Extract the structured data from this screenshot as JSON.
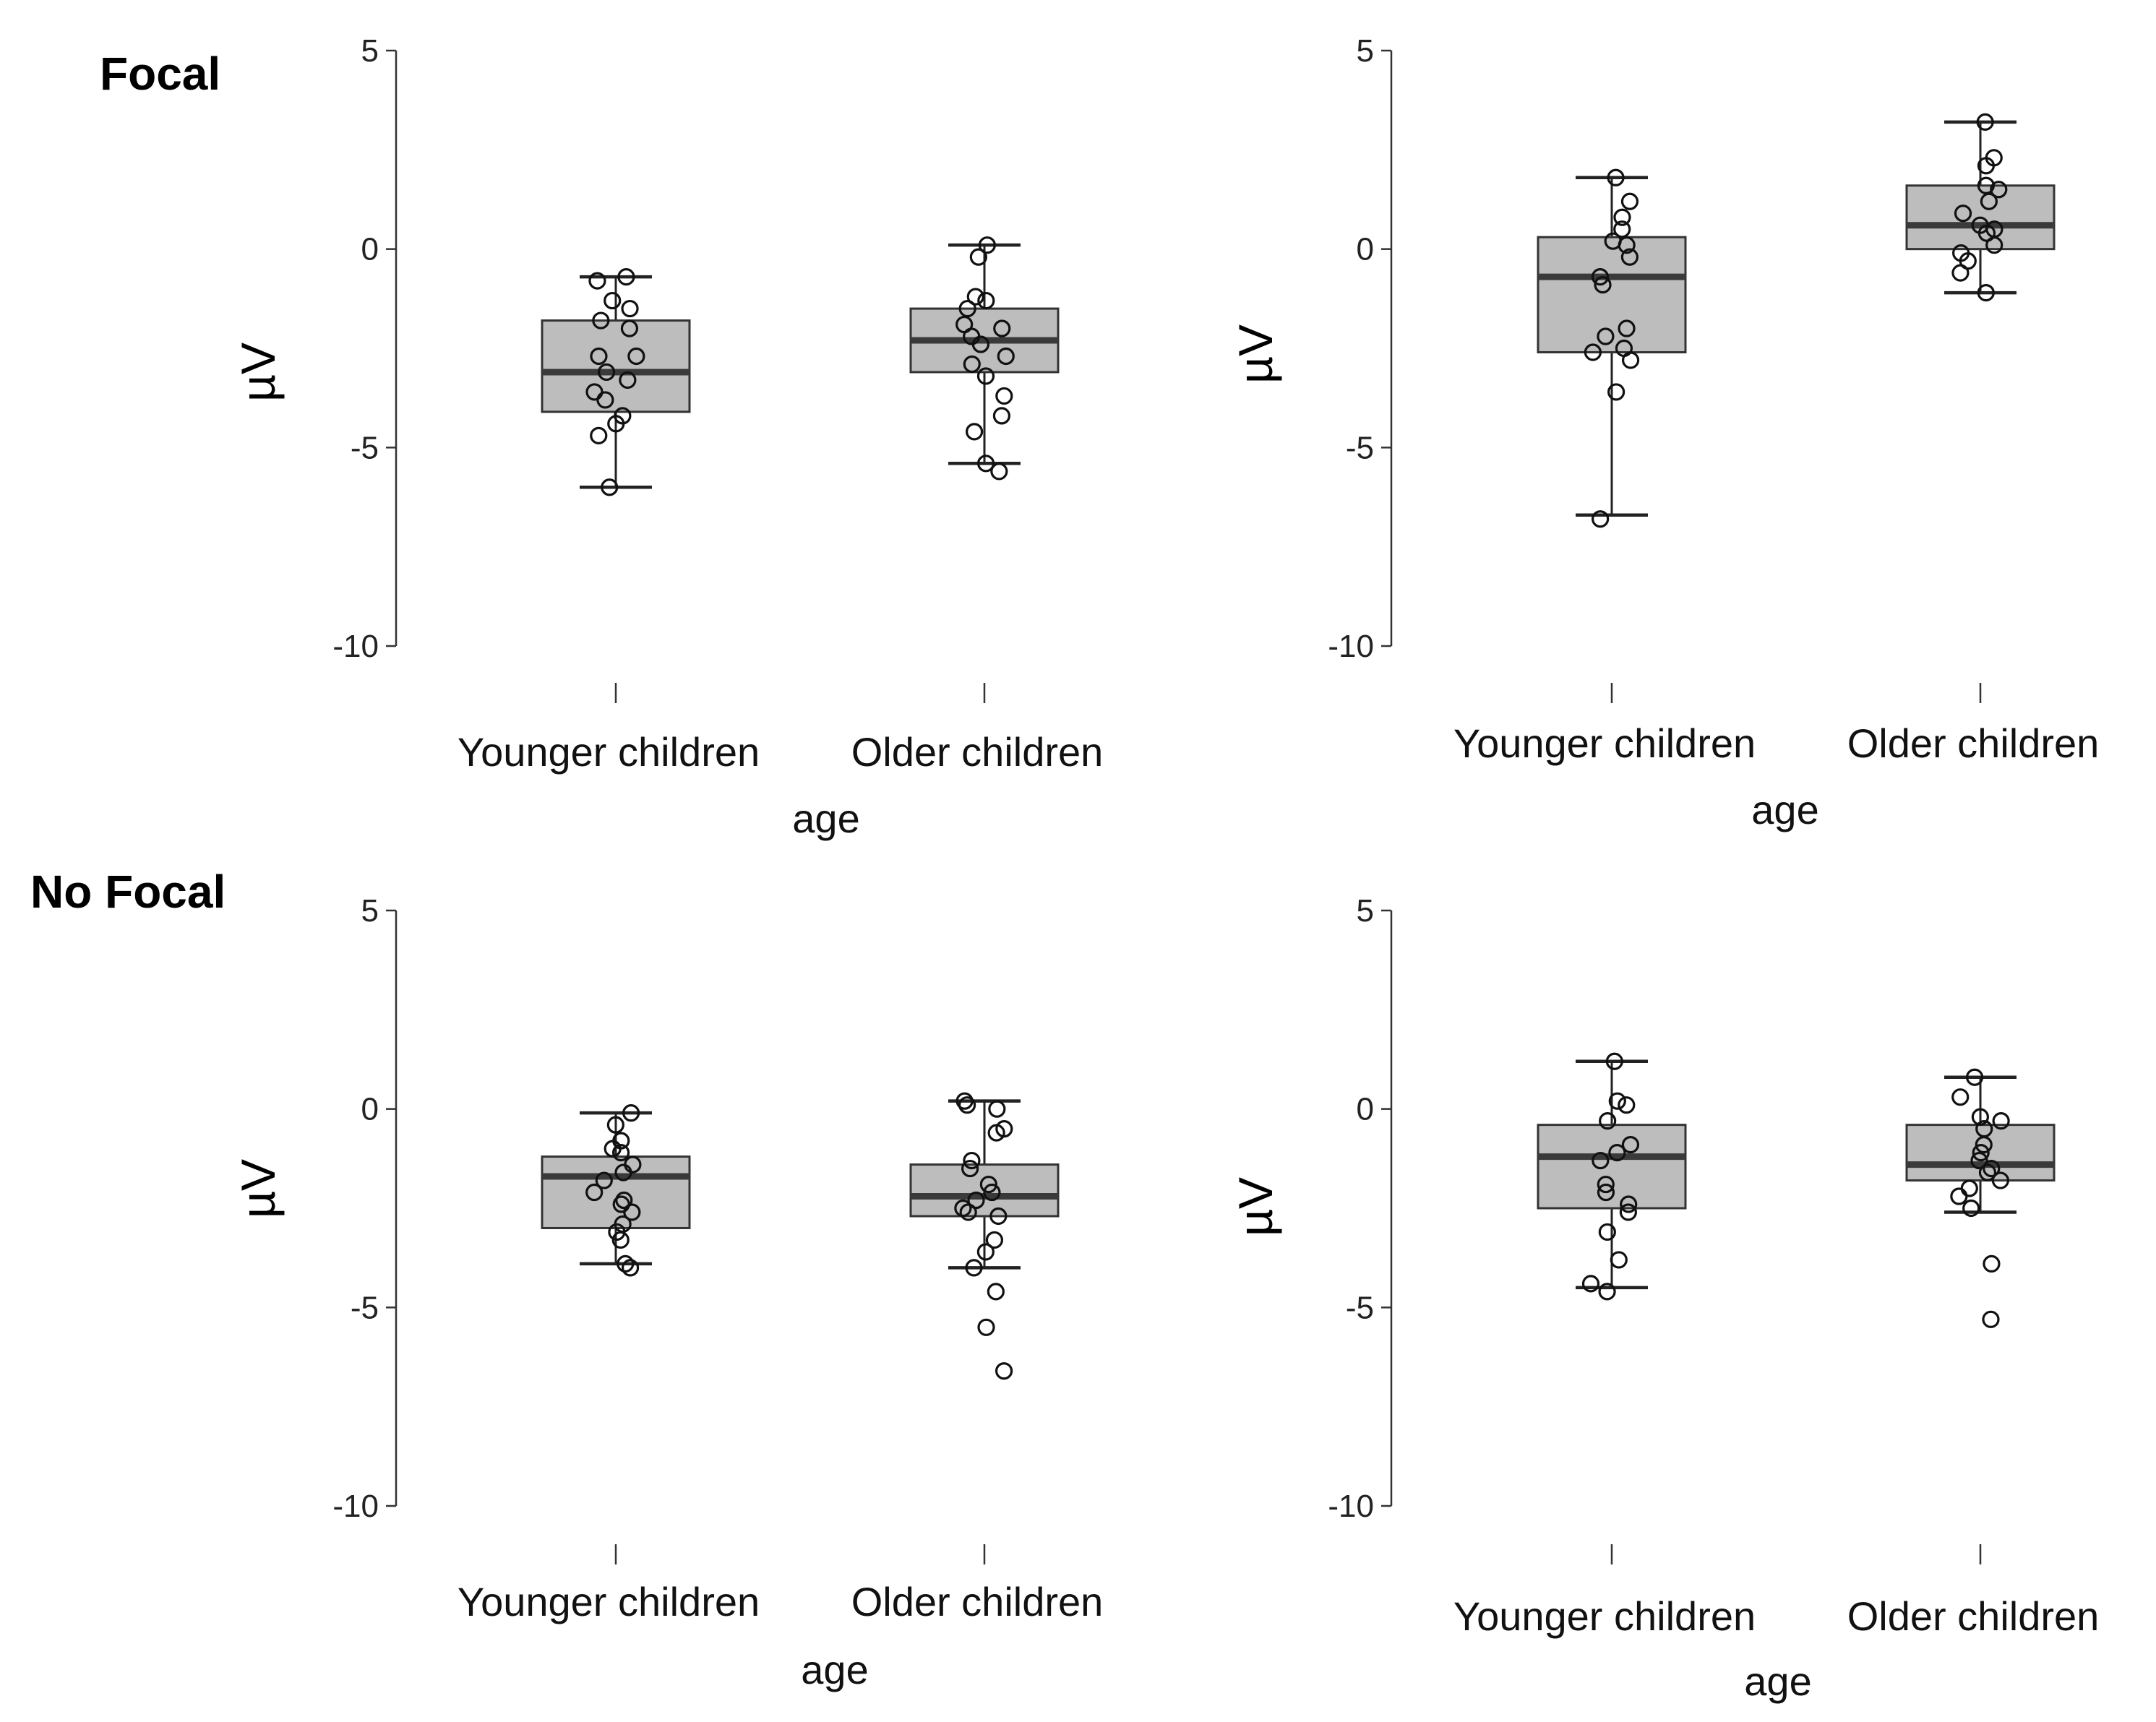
{
  "sections": [
    {
      "label": "Focal"
    },
    {
      "label": "No Focal"
    }
  ],
  "chart_data": [
    {
      "type": "box",
      "section": "Focal",
      "panel": "top-left",
      "xlabel": "age",
      "ylabel": "µV",
      "ylim": [
        -10,
        5
      ],
      "yticks": [
        5,
        0,
        -5,
        -10
      ],
      "categories": [
        "Younger children",
        "Older children"
      ],
      "series": [
        {
          "name": "Younger children",
          "q1": -4.1,
          "median": -3.1,
          "q3": -1.8,
          "whisker_low": -6.0,
          "whisker_high": -0.7,
          "points": [
            -0.7,
            -0.8,
            -1.3,
            -1.5,
            -1.8,
            -2.0,
            -2.7,
            -2.7,
            -3.1,
            -3.3,
            -3.6,
            -3.8,
            -4.2,
            -4.4,
            -4.7,
            -6.0
          ]
        },
        {
          "name": "Older children",
          "q1": -3.1,
          "median": -2.3,
          "q3": -1.5,
          "whisker_low": -5.4,
          "whisker_high": 0.1,
          "points": [
            0.1,
            -0.2,
            -1.2,
            -1.3,
            -1.5,
            -1.9,
            -2.0,
            -2.2,
            -2.4,
            -2.7,
            -2.9,
            -3.2,
            -3.7,
            -4.2,
            -4.6,
            -5.4,
            -5.6
          ]
        }
      ]
    },
    {
      "type": "box",
      "section": "Focal",
      "panel": "top-right",
      "xlabel": "age",
      "ylabel": "µV",
      "ylim": [
        -10,
        5
      ],
      "yticks": [
        5,
        0,
        -5,
        -10
      ],
      "categories": [
        "Younger children",
        "Older children"
      ],
      "series": [
        {
          "name": "Younger children",
          "q1": -2.6,
          "median": -0.7,
          "q3": 0.3,
          "whisker_low": -6.7,
          "whisker_high": 1.8,
          "points": [
            1.8,
            1.2,
            0.8,
            0.5,
            0.2,
            0.1,
            -0.2,
            -0.7,
            -0.9,
            -2.0,
            -2.2,
            -2.5,
            -2.6,
            -2.8,
            -3.6,
            -6.8
          ]
        },
        {
          "name": "Older children",
          "q1": 0.0,
          "median": 0.6,
          "q3": 1.6,
          "whisker_low": -1.1,
          "whisker_high": 3.2,
          "points": [
            3.2,
            2.3,
            2.1,
            1.6,
            1.5,
            1.2,
            0.9,
            0.6,
            0.5,
            0.4,
            0.1,
            -0.1,
            -0.3,
            -0.6,
            -1.1
          ]
        }
      ]
    },
    {
      "type": "box",
      "section": "No Focal",
      "panel": "bottom-left",
      "xlabel": "age",
      "ylabel": "µV",
      "ylim": [
        -10,
        5
      ],
      "yticks": [
        5,
        0,
        -5,
        -10
      ],
      "categories": [
        "Younger children",
        "Older children"
      ],
      "series": [
        {
          "name": "Younger children",
          "q1": -3.0,
          "median": -1.7,
          "q3": -1.2,
          "whisker_low": -3.9,
          "whisker_high": -0.1,
          "points": [
            -0.1,
            -0.4,
            -0.8,
            -1.0,
            -1.1,
            -1.4,
            -1.6,
            -1.8,
            -2.1,
            -2.3,
            -2.4,
            -2.6,
            -2.9,
            -3.1,
            -3.3,
            -3.9,
            -4.0
          ]
        },
        {
          "name": "Older children",
          "q1": -2.7,
          "median": -2.2,
          "q3": -1.4,
          "whisker_low": -4.0,
          "whisker_high": 0.2,
          "points": [
            0.2,
            0.1,
            0.0,
            -0.5,
            -0.6,
            -1.3,
            -1.5,
            -1.9,
            -2.1,
            -2.3,
            -2.5,
            -2.6,
            -2.7,
            -3.3,
            -3.6,
            -4.0,
            -4.6,
            -5.5,
            -6.6
          ]
        }
      ]
    },
    {
      "type": "box",
      "section": "No Focal",
      "panel": "bottom-right",
      "xlabel": "age",
      "ylabel": "µV",
      "ylim": [
        -10,
        5
      ],
      "yticks": [
        5,
        0,
        -5,
        -10
      ],
      "categories": [
        "Younger children",
        "Older children"
      ],
      "series": [
        {
          "name": "Younger children",
          "q1": -2.5,
          "median": -1.2,
          "q3": -0.4,
          "whisker_low": -4.5,
          "whisker_high": 1.2,
          "points": [
            1.2,
            0.2,
            0.1,
            -0.3,
            -0.9,
            -1.1,
            -1.3,
            -1.9,
            -2.1,
            -2.4,
            -2.6,
            -3.1,
            -3.8,
            -4.4,
            -4.6
          ]
        },
        {
          "name": "Older children",
          "q1": -1.8,
          "median": -1.4,
          "q3": -0.4,
          "whisker_low": -2.6,
          "whisker_high": 0.8,
          "points": [
            0.8,
            0.3,
            -0.2,
            -0.3,
            -0.5,
            -0.9,
            -1.1,
            -1.3,
            -1.5,
            -1.6,
            -1.8,
            -2.0,
            -2.2,
            -2.5,
            -3.9,
            -5.3
          ]
        }
      ]
    }
  ]
}
